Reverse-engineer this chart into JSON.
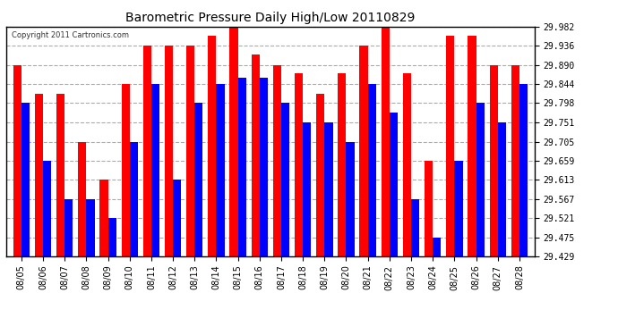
{
  "title": "Barometric Pressure Daily High/Low 20110829",
  "copyright": "Copyright 2011 Cartronics.com",
  "dates": [
    "08/05",
    "08/06",
    "08/07",
    "08/08",
    "08/09",
    "08/10",
    "08/11",
    "08/12",
    "08/13",
    "08/14",
    "08/15",
    "08/16",
    "08/17",
    "08/18",
    "08/19",
    "08/20",
    "08/21",
    "08/22",
    "08/23",
    "08/24",
    "08/25",
    "08/26",
    "08/27",
    "08/28"
  ],
  "highs": [
    29.89,
    29.82,
    29.82,
    29.705,
    29.613,
    29.844,
    29.936,
    29.936,
    29.936,
    29.96,
    29.982,
    29.916,
    29.89,
    29.87,
    29.82,
    29.87,
    29.936,
    29.982,
    29.87,
    29.659,
    29.96,
    29.96,
    29.89,
    29.89
  ],
  "lows": [
    29.798,
    29.659,
    29.567,
    29.567,
    29.521,
    29.705,
    29.844,
    29.613,
    29.798,
    29.844,
    29.86,
    29.86,
    29.798,
    29.751,
    29.751,
    29.705,
    29.844,
    29.775,
    29.567,
    29.475,
    29.659,
    29.798,
    29.751,
    29.844
  ],
  "ymin": 29.429,
  "ymax": 29.982,
  "yticks": [
    29.982,
    29.936,
    29.89,
    29.844,
    29.798,
    29.751,
    29.705,
    29.659,
    29.613,
    29.567,
    29.521,
    29.475,
    29.429
  ],
  "high_color": "#ff0000",
  "low_color": "#0000ff",
  "bg_color": "#ffffff",
  "grid_color": "#aaaaaa",
  "bar_width": 0.38,
  "figwidth": 6.9,
  "figheight": 3.75,
  "dpi": 100
}
